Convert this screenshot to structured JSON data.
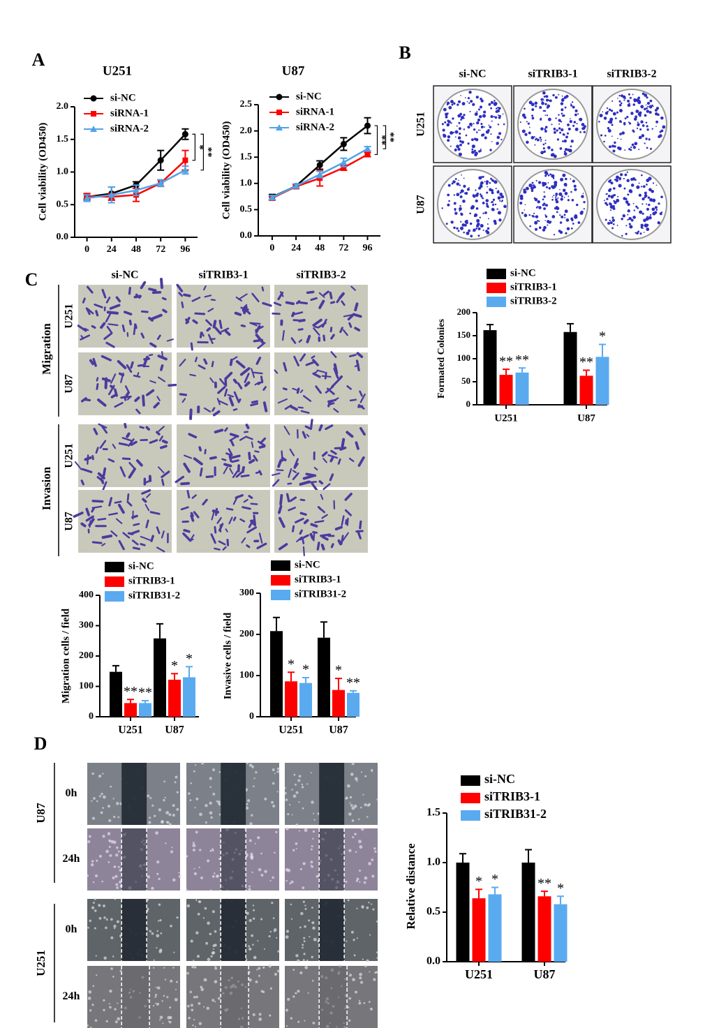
{
  "panel_labels": [
    "A",
    "B",
    "C",
    "D"
  ],
  "colony_images": {
    "columns": [
      "si-NC",
      "siTRIB3-1",
      "siTRIB3-2"
    ],
    "rows": [
      "U251",
      "U87"
    ]
  },
  "transwell_images": {
    "columns": [
      "si-NC",
      "siTRIB3-1",
      "siTRIB3-2"
    ],
    "groups": [
      {
        "name": "Migration",
        "rows": [
          "U251",
          "U87"
        ]
      },
      {
        "name": "Invasion",
        "rows": [
          "U251",
          "U87"
        ]
      }
    ]
  },
  "wound_images": {
    "groups": [
      {
        "name": "U87",
        "rows": [
          "0h",
          "24h"
        ]
      },
      {
        "name": "U251",
        "rows": [
          "0h",
          "24h"
        ]
      }
    ]
  },
  "chart_data": [
    {
      "type": "line",
      "title": "U251",
      "y_label": "Cell viability (OD450)",
      "x": [
        0,
        24,
        48,
        72,
        96
      ],
      "xlim": [
        -12,
        108
      ],
      "xticks": [
        0,
        24,
        48,
        72,
        96
      ],
      "ylim": [
        0,
        2
      ],
      "yticks": [
        {
          "value": 0,
          "label": "0.0"
        },
        {
          "value": 0.5,
          "label": "0.5"
        },
        {
          "value": 1,
          "label": "1.0"
        },
        {
          "value": 1.5,
          "label": "1.5"
        },
        {
          "value": 2,
          "label": "2.0"
        }
      ],
      "series": [
        {
          "name": "si-NC",
          "color": "#000000",
          "marker": "circle",
          "values": [
            0.62,
            0.67,
            0.8,
            1.18,
            1.58
          ],
          "errors": [
            0.05,
            0.1,
            0.05,
            0.15,
            0.08
          ]
        },
        {
          "name": "siRNA-1",
          "color": "#ff0000",
          "marker": "square",
          "values": [
            0.63,
            0.62,
            0.65,
            0.83,
            1.18
          ],
          "errors": [
            0.04,
            0.05,
            0.1,
            0.05,
            0.15
          ],
          "significance": "*"
        },
        {
          "name": "siRNA-2",
          "color": "#4fa3e6",
          "marker": "triangle",
          "values": [
            0.6,
            0.65,
            0.72,
            0.83,
            1.03
          ],
          "errors": [
            0.05,
            0.12,
            0.08,
            0.05,
            0.06
          ],
          "significance": "**"
        }
      ]
    },
    {
      "type": "line",
      "title": "U87",
      "y_label": "Cell viability (OD450)",
      "x": [
        0,
        24,
        48,
        72,
        96
      ],
      "xlim": [
        -14,
        109
      ],
      "xticks": [
        0,
        24,
        48,
        72,
        96
      ],
      "ylim": [
        0,
        2.5
      ],
      "yticks": [
        {
          "value": 0,
          "label": "0.0"
        },
        {
          "value": 0.5,
          "label": "0.5"
        },
        {
          "value": 1,
          "label": "1.0"
        },
        {
          "value": 1.5,
          "label": "1.5"
        },
        {
          "value": 2,
          "label": "2.0"
        },
        {
          "value": 2.5,
          "label": "2.5"
        }
      ],
      "series": [
        {
          "name": "si-NC",
          "color": "#000000",
          "marker": "circle",
          "values": [
            0.74,
            0.95,
            1.35,
            1.75,
            2.1
          ],
          "errors": [
            0.05,
            0.04,
            0.08,
            0.12,
            0.15
          ]
        },
        {
          "name": "siRNA-1",
          "color": "#ff0000",
          "marker": "square",
          "values": [
            0.72,
            0.94,
            1.1,
            1.3,
            1.55
          ],
          "errors": [
            0.04,
            0.04,
            0.15,
            0.05,
            0.04
          ],
          "significance": "**"
        },
        {
          "name": "siRNA-2",
          "color": "#4fa3e6",
          "marker": "triangle",
          "values": [
            0.73,
            0.95,
            1.17,
            1.4,
            1.66
          ],
          "errors": [
            0.04,
            0.04,
            0.06,
            0.08,
            0.04
          ],
          "significance": "**"
        }
      ]
    },
    {
      "type": "bar",
      "y_label": "Formated Colonies",
      "categories": [
        "U251",
        "U87"
      ],
      "ylim": [
        0,
        200
      ],
      "yticks": [
        0,
        50,
        100,
        150,
        200
      ],
      "series": [
        {
          "name": "si-NC",
          "color": "#000000",
          "values": [
            162,
            158
          ],
          "errors": [
            12,
            18
          ]
        },
        {
          "name": "siTRIB3-1",
          "color": "#ff0000",
          "values": [
            65,
            63
          ],
          "errors": [
            12,
            12
          ],
          "significance": [
            "**",
            "**"
          ]
        },
        {
          "name": "siTRIB3-2",
          "color": "#5aaaf0",
          "values": [
            70,
            104
          ],
          "errors": [
            10,
            27
          ],
          "significance": [
            "**",
            "*"
          ]
        }
      ]
    },
    {
      "type": "bar",
      "y_label": "Migration cells / field",
      "categories": [
        "U251",
        "U87"
      ],
      "ylim": [
        0,
        400
      ],
      "yticks": [
        0,
        100,
        200,
        300,
        400
      ],
      "series": [
        {
          "name": "si-NC",
          "color": "#000000",
          "values": [
            148,
            258
          ],
          "errors": [
            20,
            48
          ]
        },
        {
          "name": "siTRIB3-1",
          "color": "#ff0000",
          "values": [
            45,
            122
          ],
          "errors": [
            12,
            20
          ],
          "significance": [
            "**",
            "*"
          ]
        },
        {
          "name": "siTRIB31-2",
          "color": "#5aaaf0",
          "values": [
            45,
            130
          ],
          "errors": [
            8,
            35
          ],
          "significance": [
            "**",
            "*"
          ]
        }
      ]
    },
    {
      "type": "bar",
      "y_label": "Invasive cells / field",
      "categories": [
        "U251",
        "U87"
      ],
      "ylim": [
        0,
        300
      ],
      "yticks": [
        0,
        100,
        200,
        300
      ],
      "series": [
        {
          "name": "si-NC",
          "color": "#000000",
          "values": [
            208,
            192
          ],
          "errors": [
            33,
            38
          ]
        },
        {
          "name": "siTRIB3-1",
          "color": "#ff0000",
          "values": [
            86,
            65
          ],
          "errors": [
            22,
            28
          ],
          "significance": [
            "*",
            "*"
          ]
        },
        {
          "name": "siTRIB31-2",
          "color": "#5aaaf0",
          "values": [
            82,
            58
          ],
          "errors": [
            13,
            5
          ],
          "significance": [
            "*",
            "**"
          ]
        }
      ]
    },
    {
      "type": "bar",
      "y_label": "Relative distance",
      "categories": [
        "U251",
        "U87"
      ],
      "ylim": [
        0,
        1.5
      ],
      "yticks": [
        {
          "value": 0,
          "label": "0.0"
        },
        {
          "value": 0.5,
          "label": "0.5"
        },
        {
          "value": 1,
          "label": "1.0"
        },
        {
          "value": 1.5,
          "label": "1.5"
        }
      ],
      "series": [
        {
          "name": "si-NC",
          "color": "#000000",
          "values": [
            1.0,
            1.0
          ],
          "errors": [
            0.09,
            0.13
          ]
        },
        {
          "name": "siTRIB3-1",
          "color": "#ff0000",
          "values": [
            0.64,
            0.66
          ],
          "errors": [
            0.09,
            0.05
          ],
          "significance": [
            "*",
            "**"
          ]
        },
        {
          "name": "siTRIB31-2",
          "color": "#5aaaf0",
          "values": [
            0.68,
            0.58
          ],
          "errors": [
            0.07,
            0.08
          ],
          "significance": [
            "*",
            "*"
          ]
        }
      ]
    }
  ]
}
